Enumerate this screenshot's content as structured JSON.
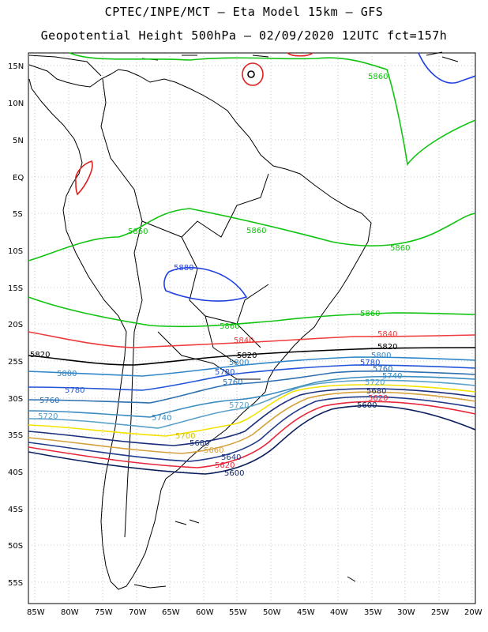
{
  "header": {
    "line1": "CPTEC/INPE/MCT –  Eta Model 15km – GFS",
    "line2": "Geopotential Height 500hPa – 02/09/2020 12UTC fct=157h"
  },
  "axes": {
    "lat_labels": [
      "15N",
      "10N",
      "5N",
      "EQ",
      "5S",
      "10S",
      "15S",
      "20S",
      "25S",
      "30S",
      "35S",
      "40S",
      "45S",
      "50S",
      "55S"
    ],
    "lon_labels": [
      "85W",
      "80W",
      "75W",
      "70W",
      "65W",
      "60W",
      "55W",
      "50W",
      "45W",
      "40W",
      "35W",
      "30W",
      "25W",
      "20W"
    ]
  },
  "colors": {
    "c5600": "#0b1f5c",
    "c5620": "#e8263a",
    "c5640": "#1f3a8a",
    "c5660": "#d4a13b",
    "c5680": "#1a2f7a",
    "c5700": "#f4e200",
    "c5720": "#5aa0c8",
    "c5740": "#3a8cc0",
    "c5760": "#2e6fb0",
    "c5780": "#2255d8",
    "c5800": "#2f86c8",
    "c5820": "#000000",
    "c5840": "#ee3b3b",
    "c5860": "#11c411",
    "c5880": "#2040e0",
    "c5900": "#e02020",
    "coast": "#000000",
    "grid": "#9a9a9a"
  },
  "contour_labels": [
    {
      "text": "5860",
      "color": "#11c411"
    },
    {
      "text": "5860",
      "color": "#11c411"
    },
    {
      "text": "5860",
      "color": "#11c411"
    },
    {
      "text": "5860",
      "color": "#11c411"
    },
    {
      "text": "5860",
      "color": "#11c411"
    },
    {
      "text": "5880",
      "color": "#2040e0"
    },
    {
      "text": "5860",
      "color": "#11c411"
    },
    {
      "text": "5840",
      "color": "#ee3b3b"
    },
    {
      "text": "5840",
      "color": "#ee3b3b"
    },
    {
      "text": "5820",
      "color": "#000000"
    },
    {
      "text": "5820",
      "color": "#000000"
    },
    {
      "text": "5820",
      "color": "#000000"
    },
    {
      "text": "5800",
      "color": "#2f86c8"
    },
    {
      "text": "5800",
      "color": "#2f86c8"
    },
    {
      "text": "5800",
      "color": "#2f86c8"
    },
    {
      "text": "5780",
      "color": "#2255d8"
    },
    {
      "text": "5780",
      "color": "#2255d8"
    },
    {
      "text": "5780",
      "color": "#2255d8"
    },
    {
      "text": "5760",
      "color": "#2e6fb0"
    },
    {
      "text": "5760",
      "color": "#2e6fb0"
    },
    {
      "text": "5760",
      "color": "#2e6fb0"
    },
    {
      "text": "5740",
      "color": "#3a8cc0"
    },
    {
      "text": "5740",
      "color": "#3a8cc0"
    },
    {
      "text": "5720",
      "color": "#5aa0c8"
    },
    {
      "text": "5720",
      "color": "#5aa0c8"
    },
    {
      "text": "5720",
      "color": "#5aa0c8"
    },
    {
      "text": "5700",
      "color": "#d4c000"
    },
    {
      "text": "5680",
      "color": "#1a2f7a"
    },
    {
      "text": "5660",
      "color": "#d4a13b"
    },
    {
      "text": "5640",
      "color": "#1f3a8a"
    },
    {
      "text": "5620",
      "color": "#e8263a"
    },
    {
      "text": "5600",
      "color": "#0b1f5c"
    },
    {
      "text": "5680",
      "color": "#1a2f7a"
    },
    {
      "text": "5620",
      "color": "#e8263a"
    },
    {
      "text": "5600",
      "color": "#0b1f5c"
    }
  ]
}
